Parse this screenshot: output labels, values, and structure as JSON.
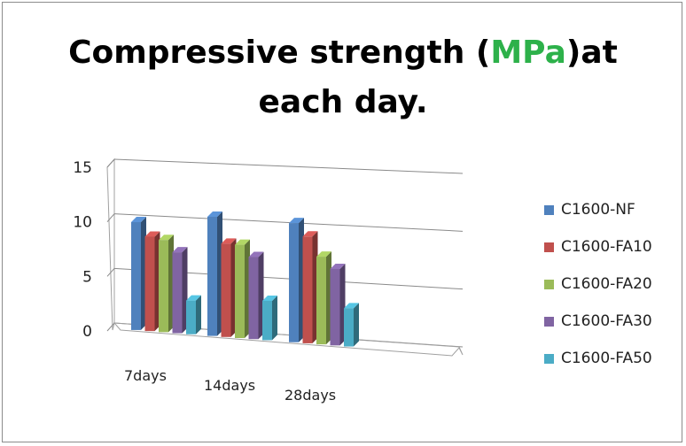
{
  "chart_data": {
    "type": "bar",
    "style": "3d-clustered-column",
    "title": {
      "line1_before": "Compressive strength (",
      "line1_highlight": "MPa",
      "line1_after": ")at",
      "line2": "each day."
    },
    "categories": [
      "7days",
      "14days",
      "28days"
    ],
    "series": [
      {
        "name": "C1600-NF",
        "values": [
          9.6,
          10.6,
          10.6
        ],
        "color": "#4f81bd"
      },
      {
        "name": "C1600-FA10",
        "values": [
          8.4,
          8.3,
          9.5
        ],
        "color": "#c0504d"
      },
      {
        "name": "C1600-FA20",
        "values": [
          8.2,
          8.3,
          7.8
        ],
        "color": "#9bbb59"
      },
      {
        "name": "C1600-FA30",
        "values": [
          7.2,
          7.3,
          6.8
        ],
        "color": "#8064a2"
      },
      {
        "name": "C1600-FA50",
        "values": [
          3.0,
          3.5,
          3.4
        ],
        "color": "#4bacc6"
      }
    ],
    "y_ticks": [
      "0",
      "5",
      "10",
      "15"
    ],
    "ylim": [
      0,
      15
    ],
    "grid": true,
    "legend_position": "right",
    "title_highlight_color": "#2db14a"
  }
}
